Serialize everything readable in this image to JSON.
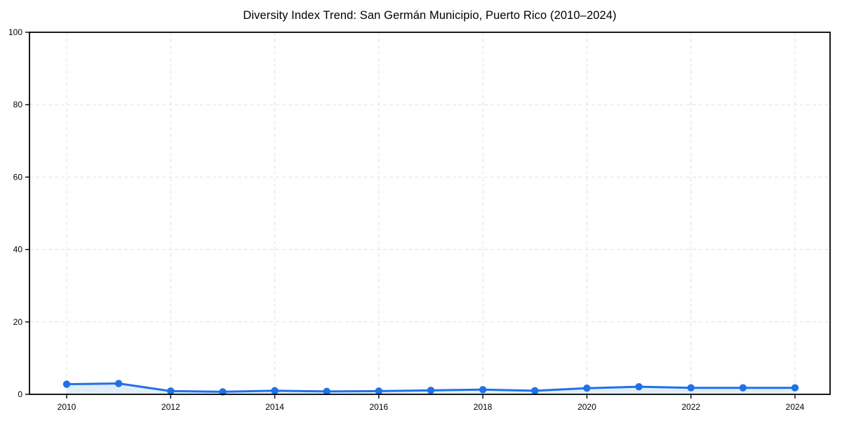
{
  "chart_data": {
    "type": "line",
    "title": "Diversity Index Trend: San Germán Municipio, Puerto Rico (2010–2024)",
    "x": [
      2010,
      2011,
      2012,
      2013,
      2014,
      2015,
      2016,
      2017,
      2018,
      2019,
      2020,
      2021,
      2022,
      2023,
      2024
    ],
    "series": [
      {
        "name": "Diversity Index",
        "values": [
          2.8,
          3.0,
          0.9,
          0.7,
          1.0,
          0.8,
          0.9,
          1.1,
          1.3,
          1.0,
          1.7,
          2.1,
          1.8,
          1.8,
          1.8
        ]
      }
    ],
    "xlabel": "",
    "ylabel": "",
    "xlim": [
      2009.3,
      2024.7
    ],
    "ylim": [
      0,
      100
    ],
    "xticks": [
      2010,
      2012,
      2014,
      2016,
      2018,
      2020,
      2022,
      2024
    ],
    "yticks": [
      0,
      20,
      40,
      60,
      80,
      100
    ],
    "grid": "dashed",
    "legend_position": "none",
    "colors": {
      "line": "#2171e8",
      "marker": "#2171e8",
      "area_fill": "rgba(33,113,232,0.13)",
      "grid": "#e0e0e0",
      "spine": "#000000",
      "tick_text": "#000000",
      "background": "#ffffff"
    }
  }
}
